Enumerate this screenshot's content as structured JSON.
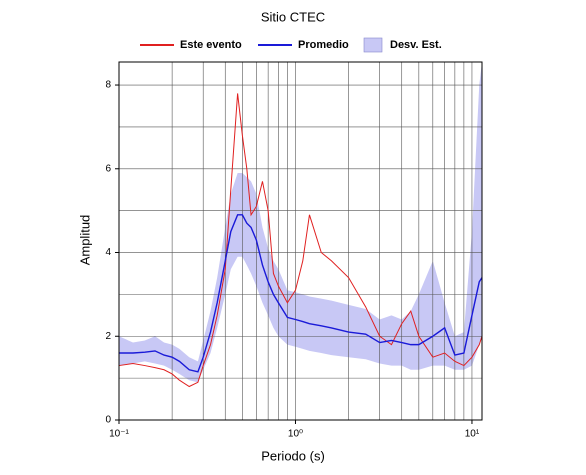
{
  "chart_data": {
    "type": "line",
    "title": "Sitio CTEC",
    "xlabel": "Periodo (s)",
    "ylabel": "Amplitud",
    "xscale": "log",
    "grid": true,
    "legend": "top",
    "xlim": [
      0.1,
      11.4
    ],
    "ylim": [
      0,
      8.55
    ],
    "xticks": [
      {
        "value": 0.1,
        "label": "10⁻¹"
      },
      {
        "value": 1,
        "label": "10⁰"
      },
      {
        "value": 10,
        "label": "10¹"
      }
    ],
    "xminorticks": [
      0.2,
      0.3,
      0.4,
      0.5,
      0.6,
      0.7,
      0.8,
      0.9,
      2,
      3,
      4,
      5,
      6,
      7,
      8,
      9
    ],
    "yticks": [
      0,
      2,
      4,
      6,
      8
    ],
    "yminorticks": [
      1,
      3,
      5,
      7
    ],
    "x": [
      0.1,
      0.12,
      0.14,
      0.16,
      0.18,
      0.2,
      0.22,
      0.25,
      0.28,
      0.3,
      0.33,
      0.36,
      0.4,
      0.43,
      0.47,
      0.5,
      0.53,
      0.56,
      0.6,
      0.65,
      0.7,
      0.75,
      0.8,
      0.9,
      1.0,
      1.1,
      1.2,
      1.4,
      1.6,
      2.0,
      2.5,
      3.0,
      3.5,
      4.0,
      4.5,
      5.0,
      6.0,
      7.0,
      8.0,
      9.0,
      10,
      11,
      11.4
    ],
    "band": {
      "name": "Desv. Est.",
      "color": "#c8c8f5",
      "lower": [
        1.3,
        1.35,
        1.4,
        1.35,
        1.3,
        1.2,
        1.1,
        0.95,
        0.9,
        1.2,
        1.6,
        2.2,
        3.0,
        3.6,
        3.9,
        3.9,
        3.7,
        3.5,
        3.2,
        2.8,
        2.5,
        2.2,
        2.0,
        1.8,
        1.75,
        1.7,
        1.65,
        1.6,
        1.55,
        1.5,
        1.45,
        1.35,
        1.3,
        1.3,
        1.2,
        1.2,
        1.3,
        1.3,
        1.2,
        1.2,
        1.3,
        1.8,
        2.0
      ],
      "upper": [
        2.0,
        1.85,
        1.9,
        2.0,
        1.85,
        1.8,
        1.7,
        1.5,
        1.4,
        1.9,
        2.6,
        3.4,
        4.6,
        5.4,
        5.9,
        5.9,
        5.8,
        5.7,
        5.4,
        4.6,
        4.1,
        3.8,
        3.6,
        3.1,
        3.05,
        3.0,
        2.95,
        2.9,
        2.85,
        2.75,
        2.65,
        2.4,
        2.5,
        2.4,
        2.6,
        3.0,
        3.8,
        2.8,
        2.0,
        2.1,
        4.5,
        8.0,
        8.55
      ]
    },
    "series": [
      {
        "name": "Este evento",
        "color": "#e02020",
        "values": [
          1.3,
          1.35,
          1.3,
          1.25,
          1.2,
          1.1,
          0.95,
          0.8,
          0.9,
          1.3,
          1.8,
          2.5,
          3.6,
          5.5,
          7.8,
          6.8,
          6.0,
          4.9,
          5.1,
          5.7,
          5.0,
          3.5,
          3.2,
          2.8,
          3.1,
          3.8,
          4.9,
          4.0,
          3.8,
          3.4,
          2.7,
          2.0,
          1.8,
          2.3,
          2.6,
          2.0,
          1.5,
          1.6,
          1.4,
          1.3,
          1.5,
          1.8,
          2.0
        ]
      },
      {
        "name": "Promedio",
        "color": "#1a1ad8",
        "values": [
          1.6,
          1.6,
          1.62,
          1.65,
          1.55,
          1.5,
          1.4,
          1.2,
          1.15,
          1.5,
          2.1,
          2.8,
          3.8,
          4.5,
          4.9,
          4.9,
          4.7,
          4.6,
          4.3,
          3.7,
          3.3,
          3.0,
          2.8,
          2.45,
          2.4,
          2.35,
          2.3,
          2.25,
          2.2,
          2.1,
          2.05,
          1.85,
          1.9,
          1.85,
          1.8,
          1.8,
          2.0,
          2.2,
          1.55,
          1.6,
          2.5,
          3.3,
          3.4
        ]
      }
    ]
  }
}
